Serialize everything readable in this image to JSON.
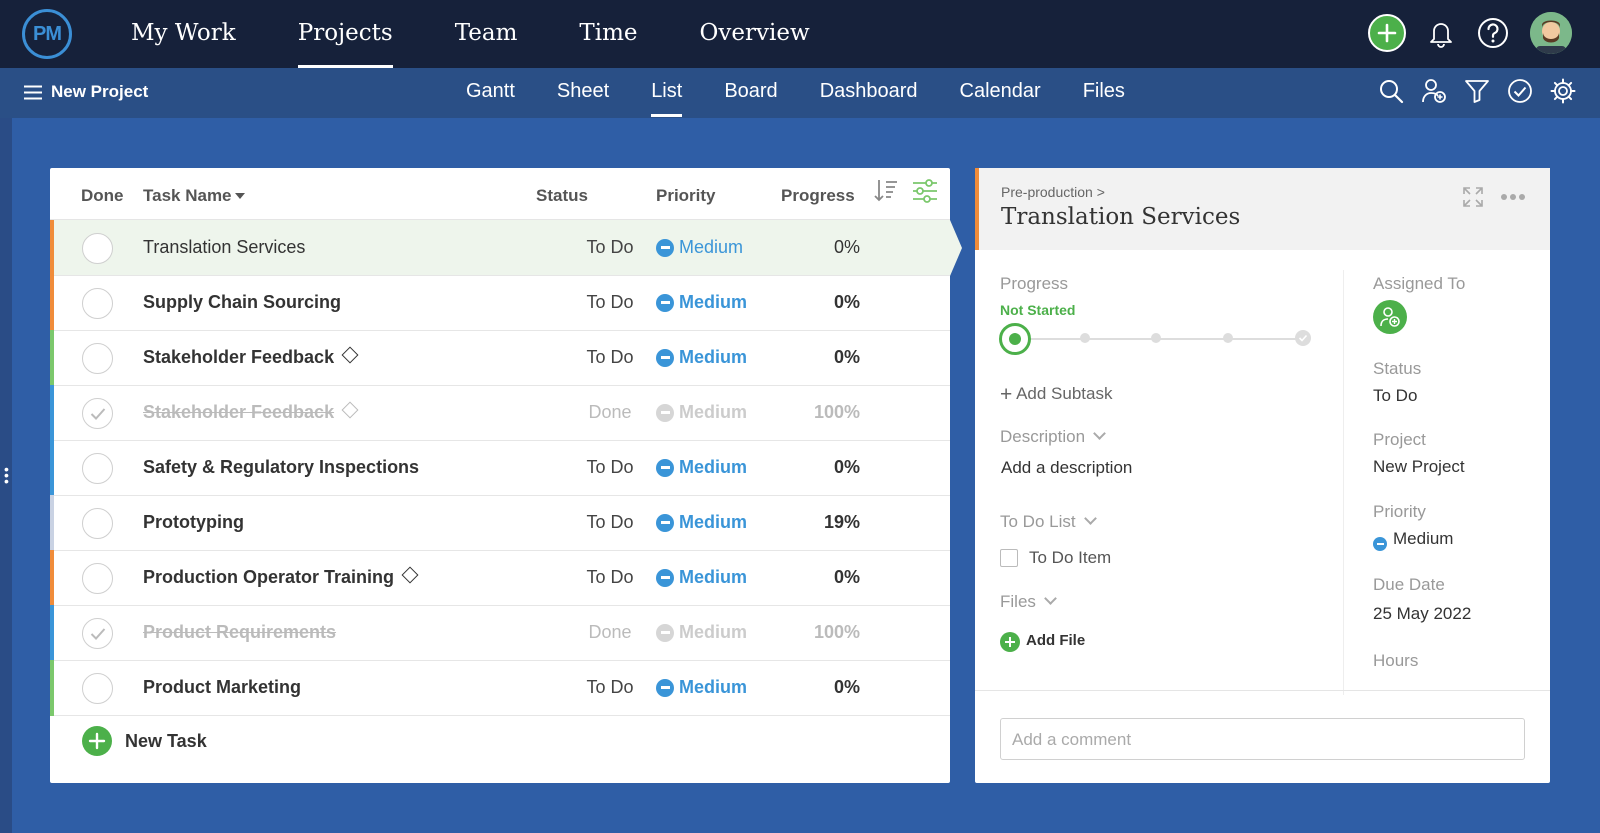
{
  "app": {
    "logo": "PM"
  },
  "topnav": {
    "items": [
      "My Work",
      "Projects",
      "Team",
      "Time",
      "Overview"
    ],
    "active": "Projects"
  },
  "subbar": {
    "project_name": "New Project",
    "views": [
      "Gantt",
      "Sheet",
      "List",
      "Board",
      "Dashboard",
      "Calendar",
      "Files"
    ],
    "active_view": "List"
  },
  "table": {
    "headers": {
      "done": "Done",
      "name": "Task Name",
      "status": "Status",
      "priority": "Priority",
      "progress": "Progress"
    },
    "rows": [
      {
        "name": "Translation Services",
        "status": "To Do",
        "priority": "Medium",
        "progress": "0%",
        "done": false,
        "milestone": false,
        "selected": true,
        "bar_color": "#f08c3a"
      },
      {
        "name": "Supply Chain Sourcing",
        "status": "To Do",
        "priority": "Medium",
        "progress": "0%",
        "done": false,
        "milestone": false,
        "selected": false,
        "bar_color": "#f08c3a"
      },
      {
        "name": "Stakeholder Feedback",
        "status": "To Do",
        "priority": "Medium",
        "progress": "0%",
        "done": false,
        "milestone": true,
        "selected": false,
        "bar_color": "#7bc86c"
      },
      {
        "name": "Stakeholder Feedback",
        "status": "Done",
        "priority": "Medium",
        "progress": "100%",
        "done": true,
        "milestone": true,
        "selected": false,
        "bar_color": "#3a95d8"
      },
      {
        "name": "Safety & Regulatory Inspections",
        "status": "To Do",
        "priority": "Medium",
        "progress": "0%",
        "done": false,
        "milestone": false,
        "selected": false,
        "bar_color": "#3a95d8"
      },
      {
        "name": "Prototyping",
        "status": "To Do",
        "priority": "Medium",
        "progress": "19%",
        "done": false,
        "milestone": false,
        "selected": false,
        "bar_color": "#c9d2e3"
      },
      {
        "name": "Production Operator Training",
        "status": "To Do",
        "priority": "Medium",
        "progress": "0%",
        "done": false,
        "milestone": true,
        "selected": false,
        "bar_color": "#f08c3a"
      },
      {
        "name": "Product Requirements",
        "status": "Done",
        "priority": "Medium",
        "progress": "100%",
        "done": true,
        "milestone": false,
        "selected": false,
        "bar_color": "#3a95d8"
      },
      {
        "name": "Product Marketing",
        "status": "To Do",
        "priority": "Medium",
        "progress": "0%",
        "done": false,
        "milestone": false,
        "selected": false,
        "bar_color": "#7bc86c"
      }
    ],
    "new_task_label": "New Task"
  },
  "detail": {
    "breadcrumb": "Pre-production >",
    "title": "Translation Services",
    "progress_label": "Progress",
    "progress_state": "Not Started",
    "progress_value": 0,
    "add_subtask": "Add Subtask",
    "description_label": "Description",
    "description_placeholder": "Add a description",
    "todo_label": "To Do List",
    "todo_item": "To Do Item",
    "files_label": "Files",
    "add_file": "Add File",
    "assigned_label": "Assigned To",
    "status_label": "Status",
    "status_value": "To Do",
    "project_label": "Project",
    "project_value": "New Project",
    "priority_label": "Priority",
    "priority_value": "Medium",
    "due_label": "Due Date",
    "due_value": "25 May 2022",
    "hours_label": "Hours",
    "comment_placeholder": "Add a comment"
  },
  "colors": {
    "accent_green": "#4cb04a",
    "priority_blue": "#3a95d8",
    "nav_dark": "#16213a",
    "subbar_blue": "#2a4f86",
    "selected_orange": "#f08c3a"
  }
}
